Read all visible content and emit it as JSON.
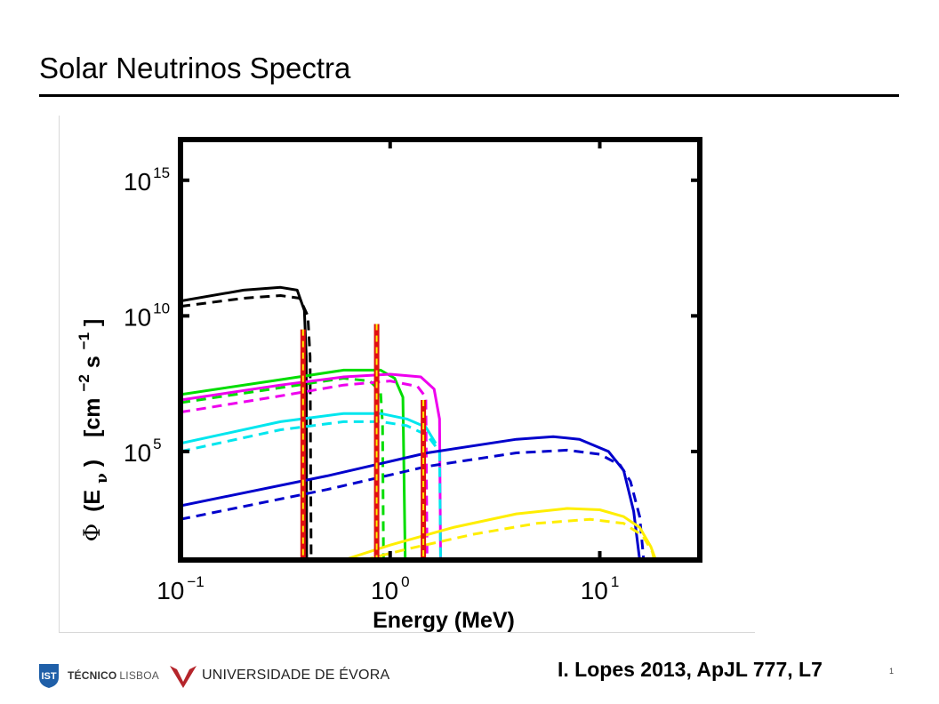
{
  "slide": {
    "title": "Solar Neutrinos Spectra",
    "citation": "I. Lopes 2013, ApJL 777, L7",
    "page_number": "1"
  },
  "logos": {
    "tecnico_bold": "TÉCNICO",
    "tecnico_light": "LISBOA",
    "uevora": "UNIVERSIDADE DE ÉVORA",
    "tecnico_color": "#1f5fa8",
    "uevora_color": "#b5252b"
  },
  "chart_data": {
    "type": "line",
    "title": "",
    "xlabel": "Energy (MeV)",
    "ylabel_parts": {
      "phi": "Φ",
      "open": "(E",
      "sub": "ν",
      "close": ")",
      "unit_pre": "[cm",
      "exp1": "−2",
      "mid": " s",
      "exp2": "−1",
      "unit_post": "]"
    },
    "x_scale": "log",
    "y_scale": "log",
    "xlim": [
      0.1,
      30
    ],
    "ylim_log10": [
      1,
      16.5
    ],
    "x_ticks": [
      {
        "value": 0.1,
        "base": "10",
        "exp": "−1"
      },
      {
        "value": 1,
        "base": "10",
        "exp": "0"
      },
      {
        "value": 10,
        "base": "10",
        "exp": "1"
      }
    ],
    "y_ticks": [
      {
        "value_log10": 5,
        "base": "10",
        "exp": "5"
      },
      {
        "value_log10": 10,
        "base": "10",
        "exp": "10"
      },
      {
        "value_log10": 15,
        "base": "10",
        "exp": "15"
      }
    ],
    "series": [
      {
        "color": "#000000",
        "style": "solid",
        "points": [
          [
            0.1,
            10.55
          ],
          [
            0.2,
            10.95
          ],
          [
            0.3,
            11.05
          ],
          [
            0.36,
            10.95
          ],
          [
            0.39,
            10.2
          ],
          [
            0.398,
            8.5
          ],
          [
            0.4,
            1
          ]
        ]
      },
      {
        "color": "#000000",
        "style": "dashed",
        "points": [
          [
            0.1,
            10.35
          ],
          [
            0.2,
            10.65
          ],
          [
            0.3,
            10.75
          ],
          [
            0.37,
            10.65
          ],
          [
            0.405,
            10.0
          ],
          [
            0.415,
            8.5
          ],
          [
            0.42,
            1
          ]
        ]
      },
      {
        "color": "#00dd00",
        "style": "solid",
        "points": [
          [
            0.1,
            7.1
          ],
          [
            0.3,
            7.65
          ],
          [
            0.6,
            8.0
          ],
          [
            0.9,
            8.0
          ],
          [
            1.05,
            7.7
          ],
          [
            1.15,
            7.0
          ],
          [
            1.18,
            1
          ]
        ]
      },
      {
        "color": "#00dd00",
        "style": "dashed",
        "points": [
          [
            0.1,
            6.8
          ],
          [
            0.3,
            7.35
          ],
          [
            0.6,
            7.7
          ],
          [
            0.8,
            7.6
          ],
          [
            0.9,
            7.2
          ],
          [
            0.92,
            6.0
          ],
          [
            0.93,
            1
          ]
        ]
      },
      {
        "color": "#ee00ee",
        "style": "solid",
        "points": [
          [
            0.1,
            6.9
          ],
          [
            0.3,
            7.45
          ],
          [
            0.6,
            7.75
          ],
          [
            1.0,
            7.85
          ],
          [
            1.4,
            7.75
          ],
          [
            1.62,
            7.3
          ],
          [
            1.72,
            6.2
          ],
          [
            1.74,
            1
          ]
        ]
      },
      {
        "color": "#ee00ee",
        "style": "dashed",
        "points": [
          [
            0.1,
            6.45
          ],
          [
            0.3,
            7.05
          ],
          [
            0.6,
            7.45
          ],
          [
            1.0,
            7.6
          ],
          [
            1.35,
            7.4
          ],
          [
            1.48,
            7.0
          ],
          [
            1.5,
            1
          ]
        ]
      },
      {
        "color": "#00e6ee",
        "style": "solid",
        "points": [
          [
            0.1,
            5.3
          ],
          [
            0.3,
            6.1
          ],
          [
            0.6,
            6.4
          ],
          [
            0.9,
            6.4
          ],
          [
            1.2,
            6.2
          ],
          [
            1.48,
            5.9
          ],
          [
            1.65,
            5.3
          ]
        ]
      },
      {
        "color": "#00e6ee",
        "style": "dashed",
        "points": [
          [
            0.1,
            5.0
          ],
          [
            0.3,
            5.8
          ],
          [
            0.6,
            6.1
          ],
          [
            0.9,
            6.1
          ],
          [
            1.2,
            5.95
          ],
          [
            1.5,
            5.6
          ],
          [
            1.72,
            5.0
          ],
          [
            1.74,
            1
          ]
        ]
      },
      {
        "color": "#0000cc",
        "style": "solid",
        "points": [
          [
            0.1,
            3.0
          ],
          [
            0.5,
            4.1
          ],
          [
            1.5,
            4.95
          ],
          [
            4,
            5.45
          ],
          [
            6,
            5.55
          ],
          [
            8,
            5.45
          ],
          [
            11,
            5.0
          ],
          [
            13,
            4.3
          ],
          [
            14.5,
            2.8
          ],
          [
            15.5,
            1
          ]
        ]
      },
      {
        "color": "#0000cc",
        "style": "dashed",
        "points": [
          [
            0.1,
            2.5
          ],
          [
            0.5,
            3.6
          ],
          [
            1.5,
            4.45
          ],
          [
            4,
            4.95
          ],
          [
            7,
            5.05
          ],
          [
            10,
            4.9
          ],
          [
            12.5,
            4.5
          ],
          [
            14,
            3.9
          ],
          [
            15.5,
            2.6
          ],
          [
            16.2,
            1
          ]
        ]
      },
      {
        "color": "#ffee00",
        "style": "solid",
        "points": [
          [
            0.6,
            1.0
          ],
          [
            1.0,
            1.55
          ],
          [
            2,
            2.2
          ],
          [
            4,
            2.7
          ],
          [
            7,
            2.9
          ],
          [
            10,
            2.85
          ],
          [
            13,
            2.6
          ],
          [
            15.5,
            2.2
          ],
          [
            17.5,
            1.5
          ],
          [
            18.5,
            1
          ]
        ]
      },
      {
        "color": "#ffee00",
        "style": "dashed",
        "points": [
          [
            0.75,
            1.0
          ],
          [
            1.2,
            1.4
          ],
          [
            2.5,
            1.95
          ],
          [
            5,
            2.35
          ],
          [
            9,
            2.5
          ],
          [
            13,
            2.35
          ],
          [
            16,
            1.9
          ],
          [
            17.8,
            1.3
          ],
          [
            18.2,
            1
          ]
        ]
      }
    ],
    "lines": [
      {
        "energy": 0.384,
        "top_log10": 9.5,
        "color": "#e01010",
        "dash_color": "#ffee00"
      },
      {
        "energy": 0.862,
        "top_log10": 9.7,
        "color": "#e01010",
        "dash_color": "#ffee00"
      },
      {
        "energy": 1.44,
        "top_log10": 6.9,
        "color": "#e01010",
        "dash_color": "#ffee00"
      }
    ]
  }
}
